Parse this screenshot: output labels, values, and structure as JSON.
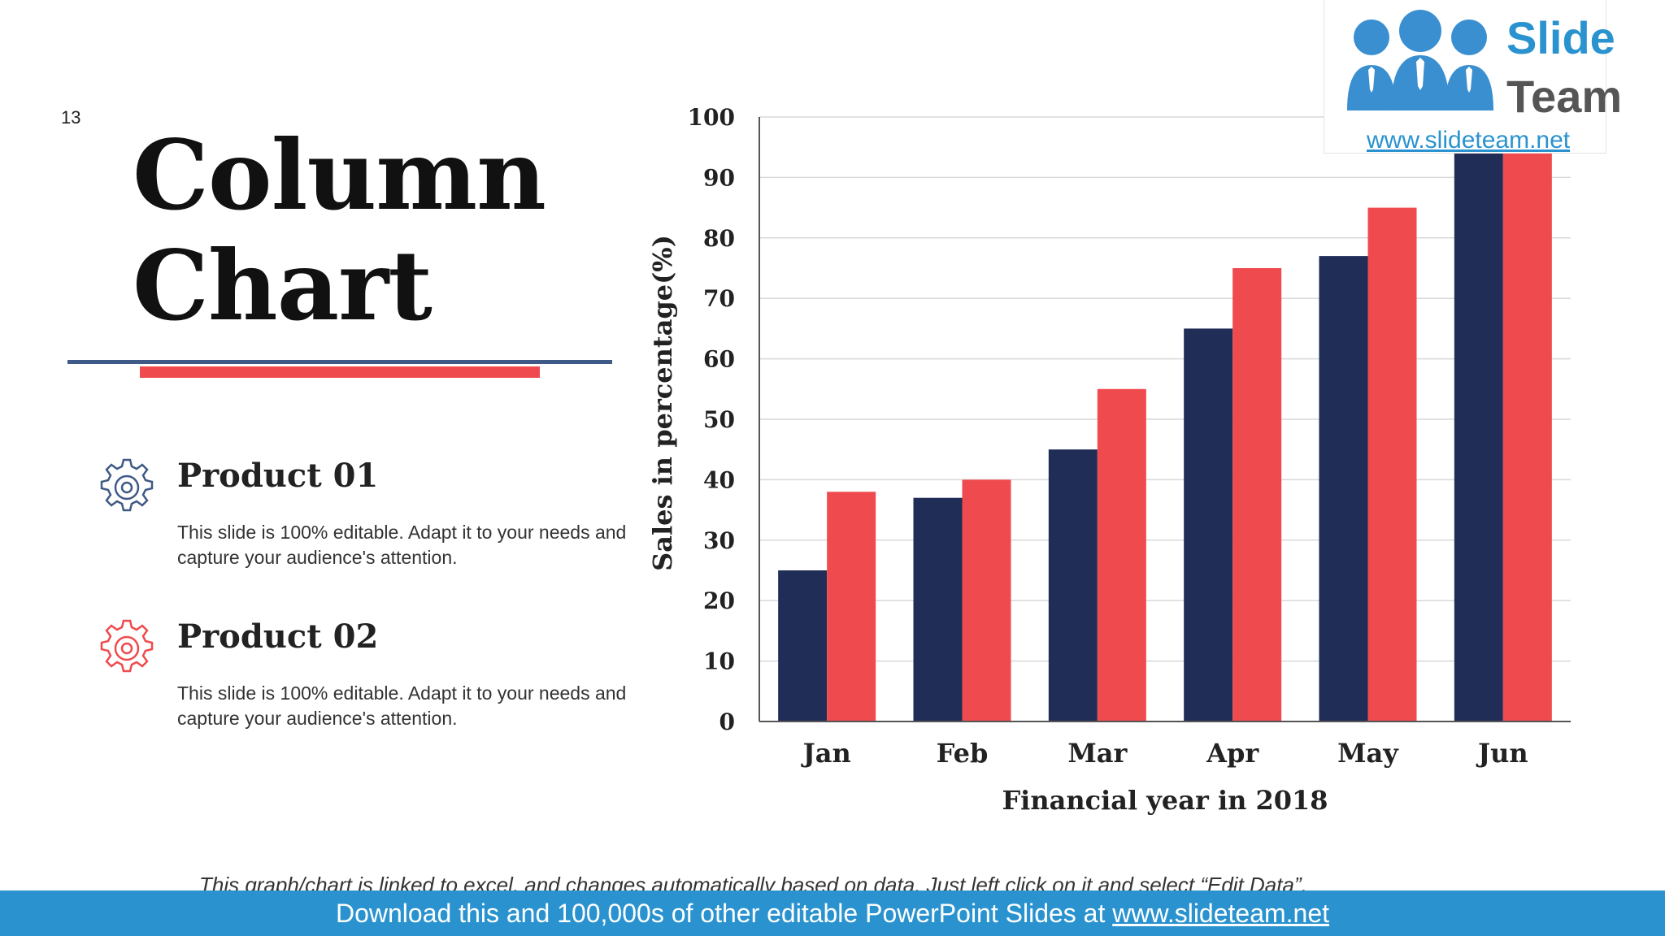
{
  "slide_number": "13",
  "title_line1": "Column",
  "title_line2": "Chart",
  "products": [
    {
      "name": "Product 01",
      "description": "This slide is 100% editable. Adapt it to your needs and capture your audience's attention.",
      "icon": "gear-icon",
      "color": "#3f5a86"
    },
    {
      "name": "Product 02",
      "description": "This slide is 100% editable. Adapt it to your needs and capture your audience's attention.",
      "icon": "gear-icon",
      "color": "#ef4b4e"
    }
  ],
  "chart_data": {
    "type": "bar",
    "categories": [
      "Jan",
      "Feb",
      "Mar",
      "Apr",
      "May",
      "Jun"
    ],
    "series": [
      {
        "name": "Product 01",
        "values": [
          25,
          37,
          45,
          65,
          77,
          95
        ],
        "color": "#1f2d57"
      },
      {
        "name": "Product 02",
        "values": [
          38,
          40,
          55,
          75,
          85,
          98
        ],
        "color": "#ef4b4e"
      }
    ],
    "xlabel": "Financial year in 2018",
    "ylabel": "Sales in percentage(%)",
    "ylim": [
      0,
      100
    ],
    "yticks": [
      0,
      10,
      20,
      30,
      40,
      50,
      60,
      70,
      80,
      90,
      100
    ],
    "grid": true
  },
  "footnote": "This graph/chart is linked to excel, and changes automatically based on data. Just left click on it and select “Edit Data”.",
  "banner": {
    "text": "Download this and 100,000s of other editable PowerPoint Slides at ",
    "link": "www.slideteam.net"
  },
  "logo": {
    "word1": "Slide",
    "word2": "Team",
    "url": "www.slideteam.net"
  }
}
